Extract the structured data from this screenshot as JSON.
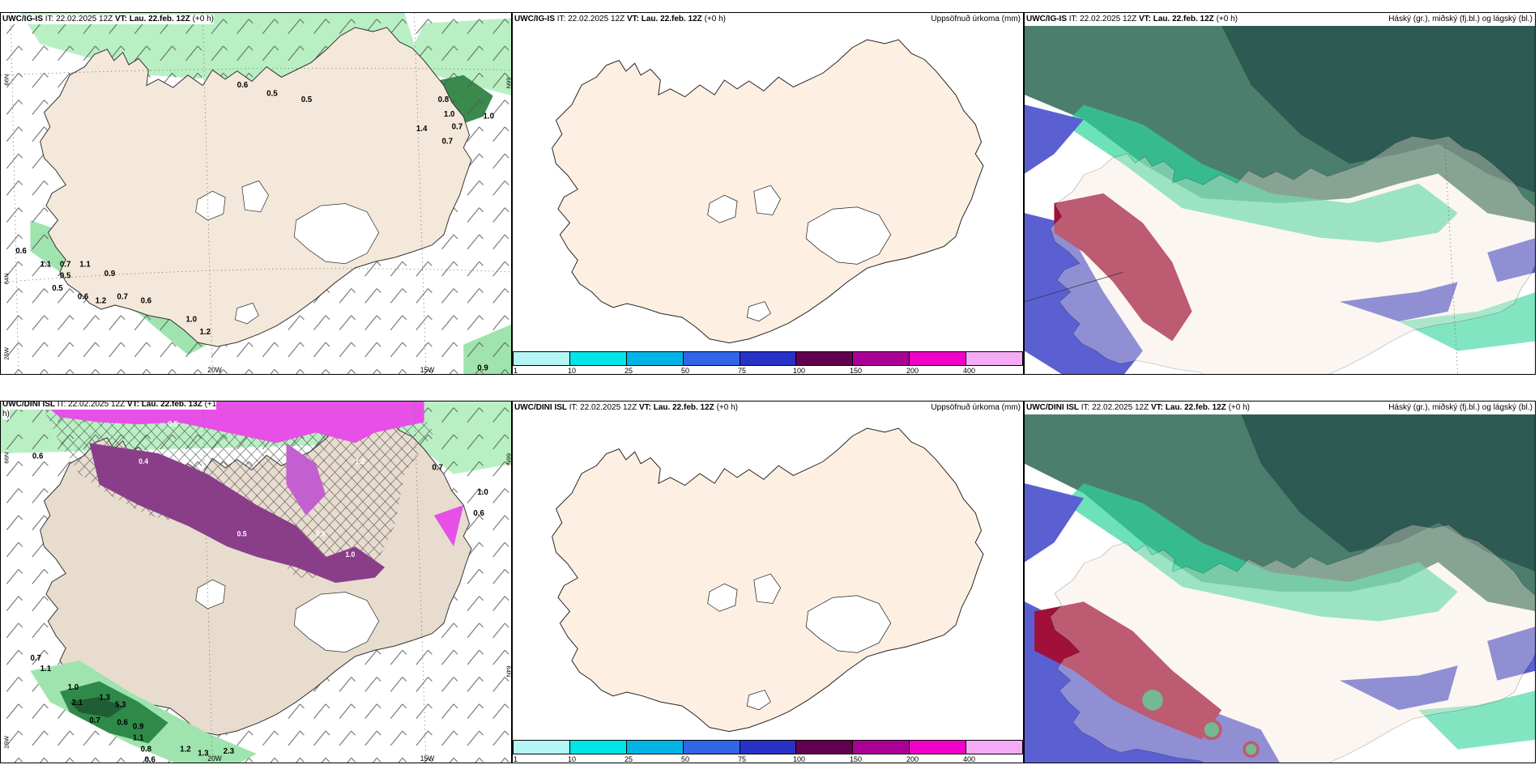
{
  "panels": {
    "r1c1": {
      "model": "UWC/IG-IS",
      "it": "IT: 22.02.2025 12Z",
      "vt_label": "VT:",
      "vt": "Lau. 22.feb. 12Z",
      "lead": "(+0 h)",
      "right": ""
    },
    "r1c2": {
      "model": "UWC/IG-IS",
      "it": "IT: 22.02.2025 12Z",
      "vt_label": "VT:",
      "vt": "Lau. 22.feb. 12Z",
      "lead": "(+0 h)",
      "right": "Uppsöfnuð úrkoma (mm)"
    },
    "r1c3": {
      "model": "UWC/IG-IS",
      "it": "IT: 22.02.2025 12Z",
      "vt_label": "VT:",
      "vt": "Lau. 22.feb. 12Z",
      "lead": "(+0 h)",
      "right": "Háský (gr.), miðský (fj.bl.) og lágský (bl.)"
    },
    "r2c1": {
      "model": "UWC/DINI ISL",
      "it": "IT: 22.02.2025 12Z",
      "vt_label": "VT:",
      "vt": "Lau. 22.feb. 13Z",
      "lead": "(+1",
      "lead2": "h)",
      "right": ""
    },
    "r2c2": {
      "model": "UWC/DINI ISL",
      "it": "IT: 22.02.2025 12Z",
      "vt_label": "VT:",
      "vt": "Lau. 22.feb. 12Z",
      "lead": "(+0 h)",
      "right": "Uppsöfnuð úrkoma (mm)"
    },
    "r2c3": {
      "model": "UWC/DINI ISL",
      "it": "IT: 22.02.2025 12Z",
      "vt_label": "VT:",
      "vt": "Lau. 22.feb. 12Z",
      "lead": "(+0 h)",
      "right": "Háský (gr.), miðský (fj.bl.) og lágský (bl.)"
    }
  },
  "gridlabels": {
    "lat66": "66N",
    "lat64": "64N",
    "lon20": "20W",
    "lon15": "15W",
    "lon25": "25W"
  },
  "colorbar": {
    "ticks": [
      "1",
      "10",
      "25",
      "50",
      "75",
      "100",
      "150",
      "200",
      "400"
    ],
    "colors": [
      "#b4f5f5",
      "#00e6e6",
      "#00b4e6",
      "#3264e6",
      "#2832c8",
      "#640050",
      "#aa0096",
      "#f000c8",
      "#f5aaf5"
    ]
  },
  "precip_labels_top": [
    "0.6",
    "0.5",
    "0.5",
    "0.8",
    "1.0",
    "0.7",
    "1.0",
    "1.4",
    "0.7",
    "0.6",
    "1.1",
    "0.7",
    "1.1",
    "0.5",
    "0.9",
    "0.5",
    "0.6",
    "0.7",
    "1.2",
    "0.6",
    "1.0",
    "1.2",
    "0.9"
  ],
  "precip_labels_bottom": [
    "0.6",
    "0.7",
    "1.0",
    "0.6",
    "0.7",
    "1.1",
    "1.0",
    "2.1",
    "1.3",
    "5.3",
    "0.7",
    "0.6",
    "0.9",
    "1.1",
    "0.8",
    "1.2",
    "1.3",
    "2.3",
    "0.6",
    "0.5",
    "0.4",
    "1.2",
    "0.9",
    "1.0",
    "0.5"
  ],
  "colors": {
    "land": "#f4e8da",
    "sea": "#ffffff",
    "precip_light": "#b9f0c3",
    "precip_dark": "#1f6e3a",
    "snow": "#e650e6",
    "high_cloud": "#2a5a50",
    "mid_cloud": "#2fd49a",
    "low_cloud": "#5a60d2",
    "red_cloud": "#a0103a"
  }
}
